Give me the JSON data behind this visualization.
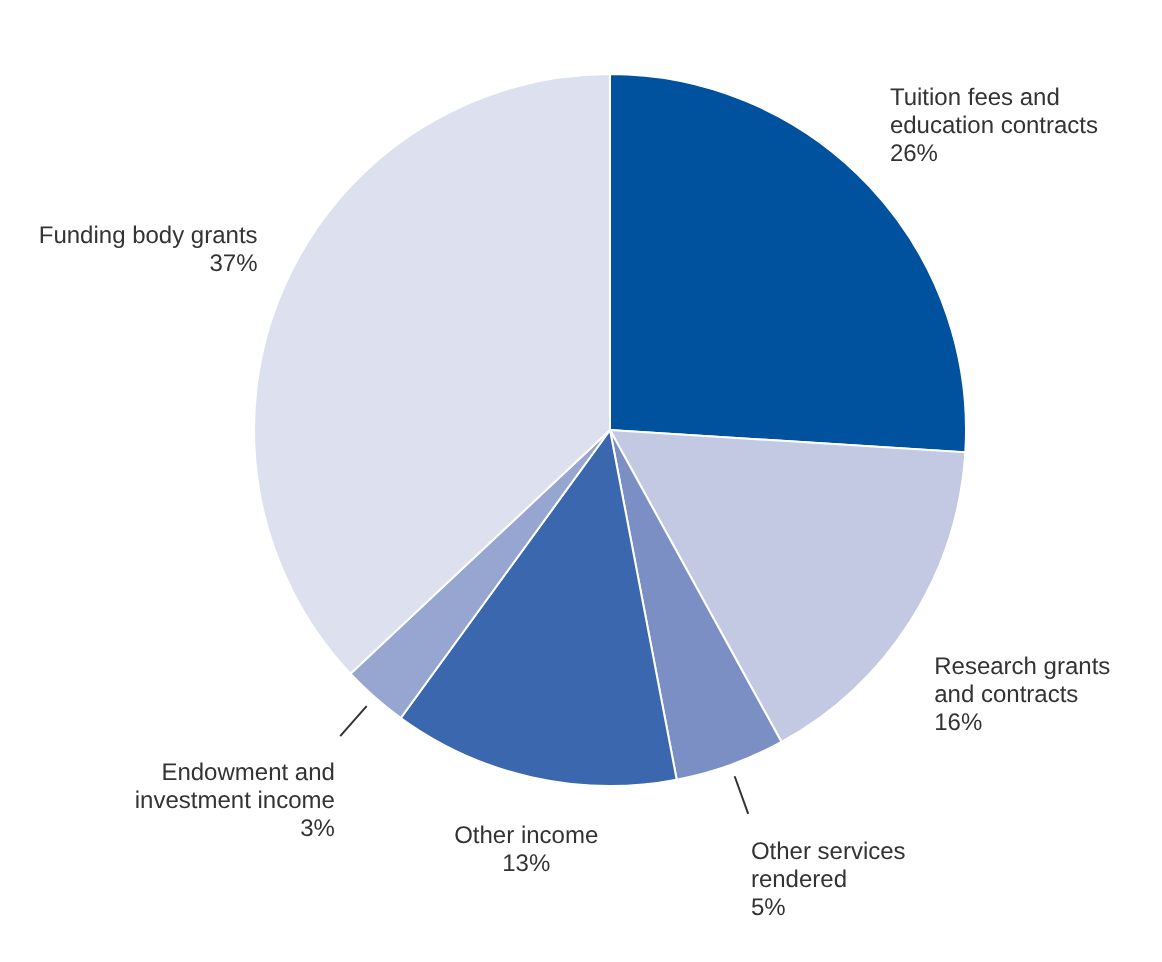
{
  "chart_data": {
    "type": "pie",
    "categories": [
      "Tuition fees and\neducation contracts",
      "Research grants\nand contracts",
      "Other services\nrendered",
      "Other income",
      "Endowment and\ninvestment income",
      "Funding body grants"
    ],
    "values": [
      26,
      16,
      5,
      13,
      3,
      37
    ],
    "value_labels": [
      "26%",
      "16%",
      "5%",
      "13%",
      "3%",
      "37%"
    ],
    "colors": [
      "#00519e",
      "#c3c9e3",
      "#7b8fc4",
      "#3a67ad",
      "#97a6d1",
      "#dde0ef"
    ]
  }
}
